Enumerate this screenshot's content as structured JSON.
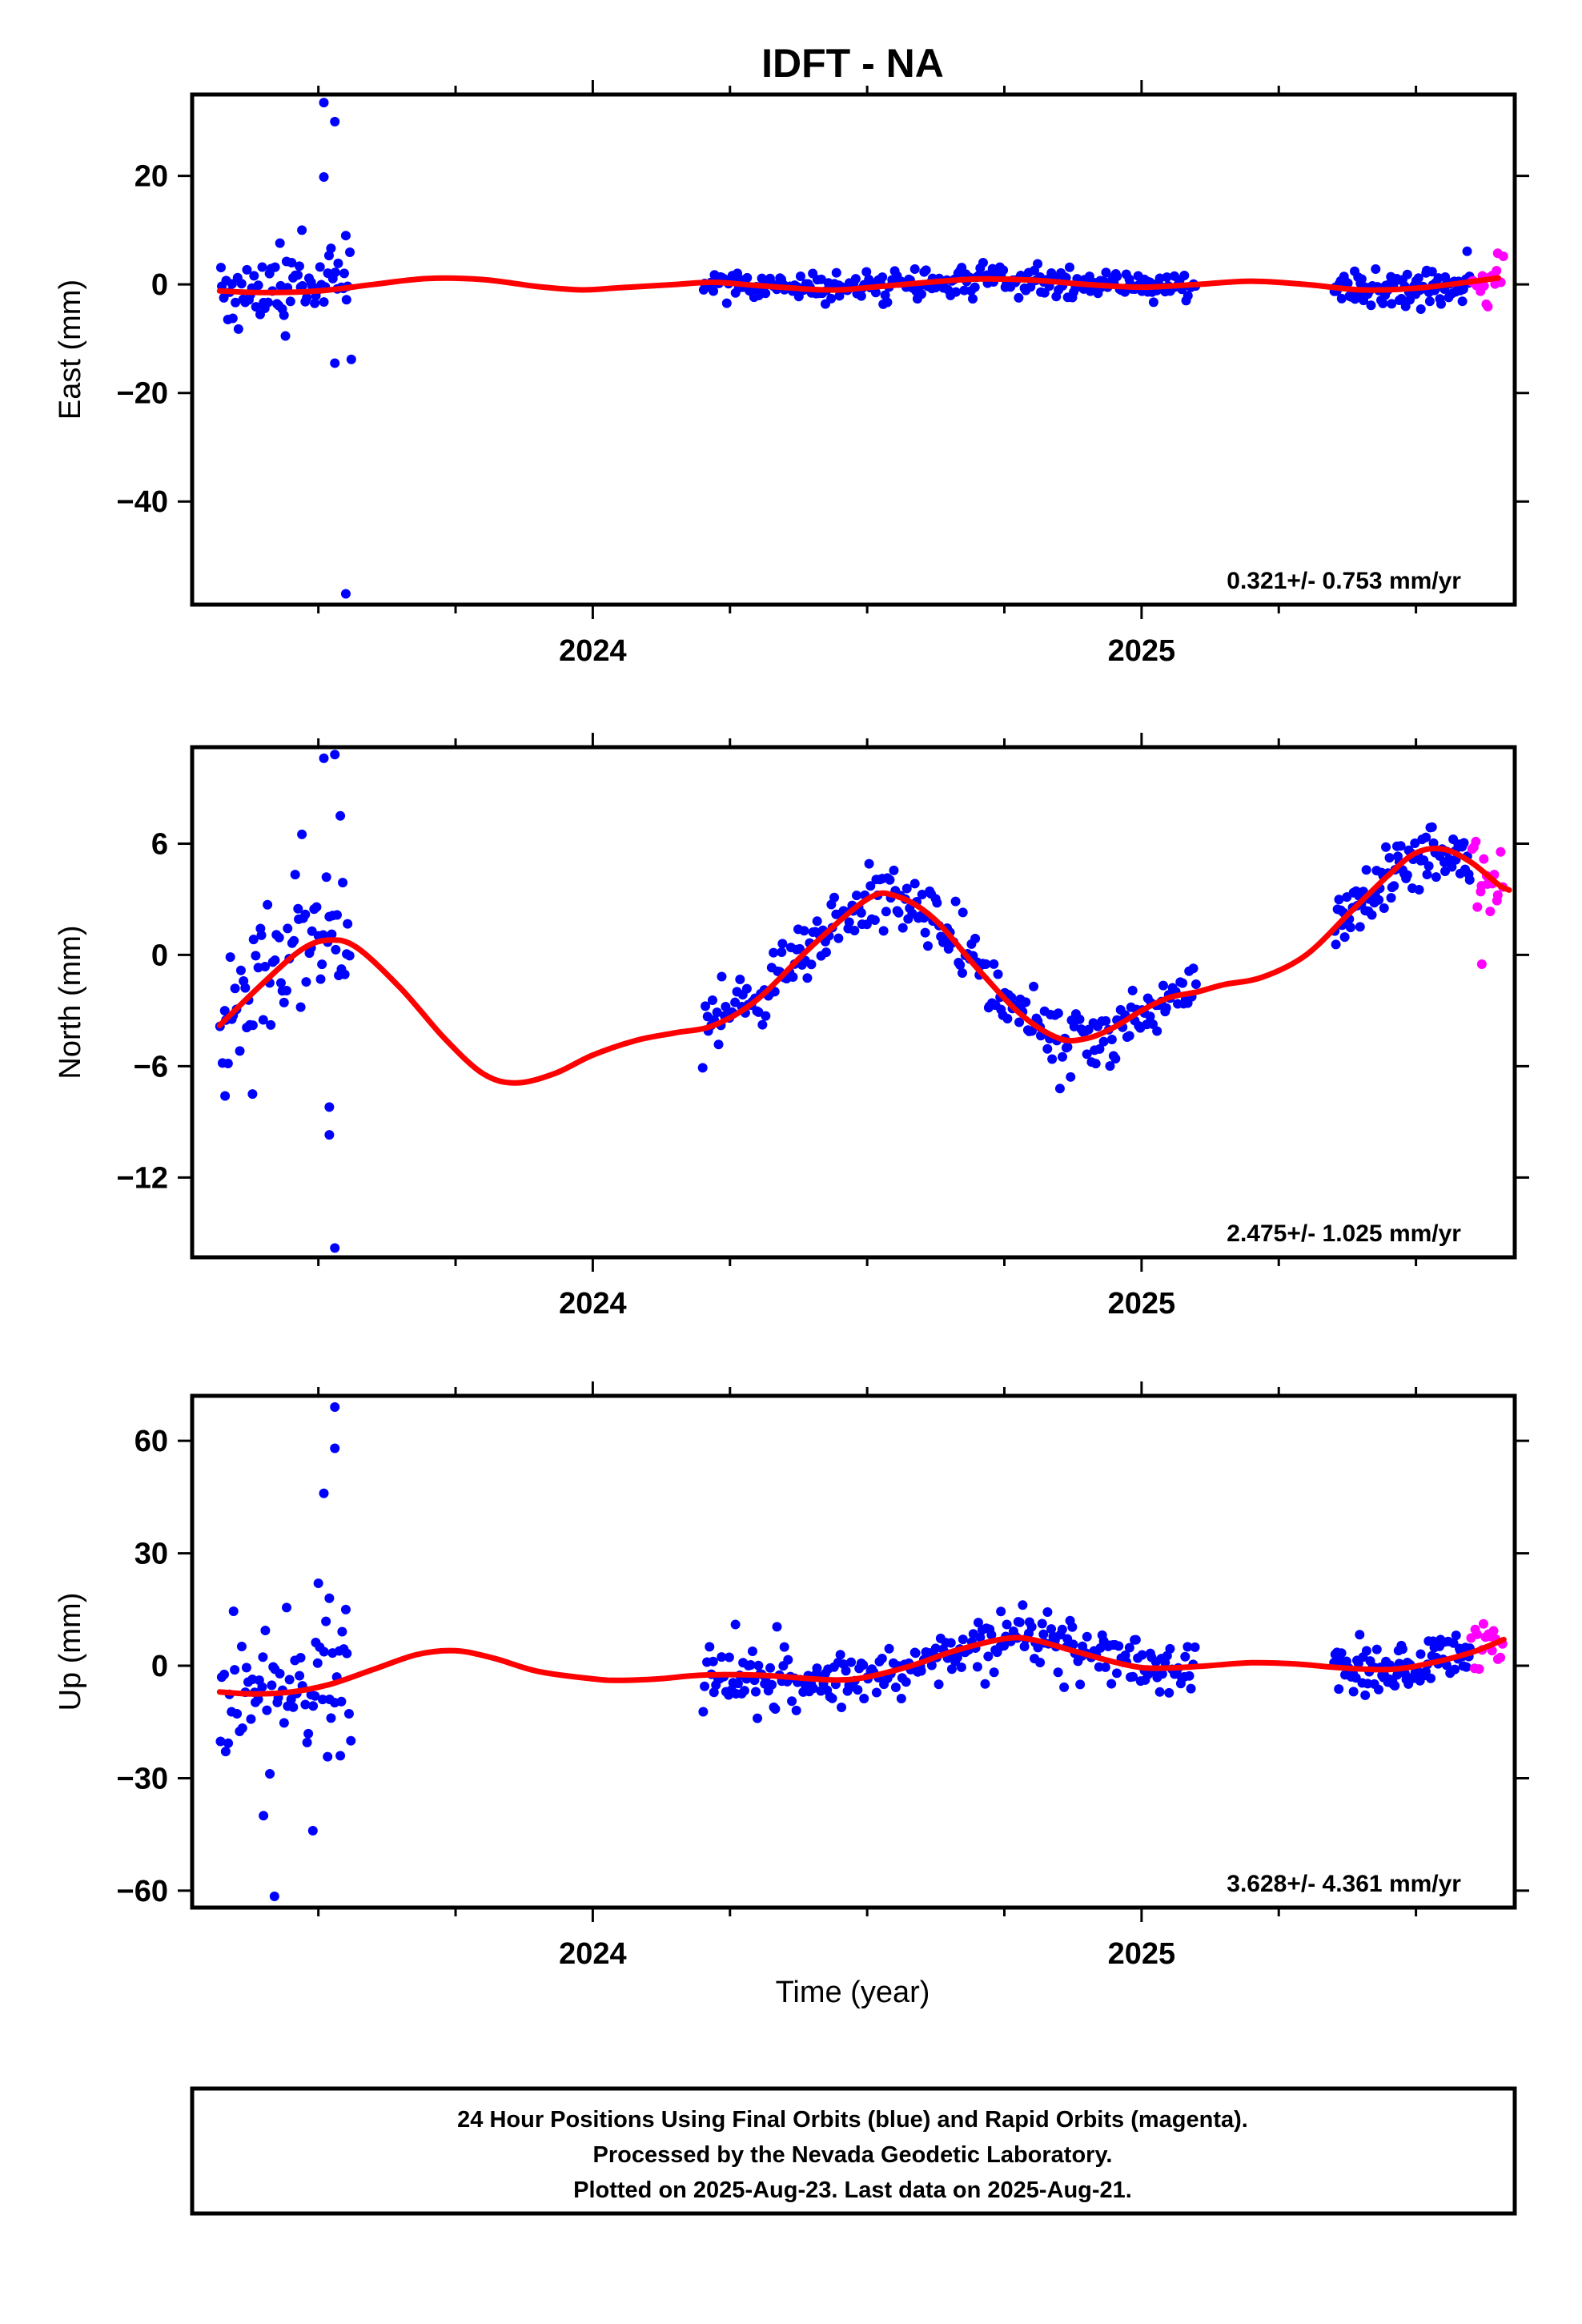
{
  "title": "IDFT - NA",
  "xlabel": "Time (year)",
  "colors": {
    "final": "#0000ff",
    "rapid": "#ff00ff",
    "model": "#ff0000",
    "frame": "#000000"
  },
  "x_range": [
    2023.27,
    2025.68
  ],
  "x_ticks": [
    {
      "value": 2024.0,
      "label": "2024"
    },
    {
      "value": 2025.0,
      "label": "2025"
    }
  ],
  "footer": {
    "line1": "24 Hour Positions Using Final Orbits (blue) and Rapid Orbits (magenta).",
    "line2": "Processed by the Nevada Geodetic Laboratory.",
    "line3": "Plotted on 2025-Aug-23. Last data on 2025-Aug-21."
  },
  "chart_data": [
    {
      "type": "scatter",
      "ylabel": "East (mm)",
      "rate": "0.321+/- 0.753 mm/yr",
      "ylim": [
        -59,
        35
      ],
      "yticks": [
        20,
        0,
        -20,
        -40
      ],
      "model": [
        [
          2023.32,
          -1.2
        ],
        [
          2023.4,
          -1.5
        ],
        [
          2023.5,
          -1.2
        ],
        [
          2023.6,
          0.0
        ],
        [
          2023.7,
          1.1
        ],
        [
          2023.8,
          0.9
        ],
        [
          2023.9,
          -0.4
        ],
        [
          2023.98,
          -1.0
        ],
        [
          2024.05,
          -0.6
        ],
        [
          2024.15,
          0.0
        ],
        [
          2024.22,
          0.4
        ],
        [
          2024.3,
          -0.2
        ],
        [
          2024.4,
          -0.9
        ],
        [
          2024.45,
          -1.0
        ],
        [
          2024.5,
          -0.6
        ],
        [
          2024.6,
          0.3
        ],
        [
          2024.7,
          1.0
        ],
        [
          2024.8,
          0.8
        ],
        [
          2024.9,
          0.0
        ],
        [
          2025.0,
          -0.5
        ],
        [
          2025.1,
          0.0
        ],
        [
          2025.2,
          0.6
        ],
        [
          2025.3,
          0.0
        ],
        [
          2025.4,
          -1.0
        ],
        [
          2025.5,
          -0.7
        ],
        [
          2025.6,
          0.5
        ],
        [
          2025.65,
          1.2
        ]
      ],
      "outliers": [
        [
          2023.51,
          33.5
        ],
        [
          2023.53,
          30.0
        ],
        [
          2023.51,
          19.8
        ],
        [
          2023.47,
          10.0
        ],
        [
          2023.43,
          7.6
        ],
        [
          2023.55,
          9.0
        ],
        [
          2023.55,
          -57.0
        ],
        [
          2023.53,
          -14.5
        ],
        [
          2023.56,
          -13.8
        ],
        [
          2023.44,
          -9.5
        ]
      ],
      "final_segments": [
        {
          "start": 2023.32,
          "end": 2023.56,
          "n": 70,
          "seed": 11,
          "spread": 3.5
        },
        {
          "start": 2024.2,
          "end": 2025.1,
          "n": 260,
          "seed": 12,
          "spread": 1.4
        },
        {
          "start": 2025.35,
          "end": 2025.6,
          "n": 90,
          "seed": 13,
          "spread": 1.6
        }
      ],
      "rapid_segment": {
        "start": 2025.6,
        "end": 2025.66,
        "n": 16,
        "seed": 14,
        "spread": 2.2
      }
    },
    {
      "type": "scatter",
      "ylabel": "North (mm)",
      "rate": "2.475+/- 1.025 mm/yr",
      "ylim": [
        -16.3,
        11.2
      ],
      "yticks": [
        6,
        0,
        -6,
        -12
      ],
      "model": [
        [
          2023.32,
          -3.8
        ],
        [
          2023.4,
          -1.5
        ],
        [
          2023.47,
          0.3
        ],
        [
          2023.52,
          0.8
        ],
        [
          2023.57,
          0.4
        ],
        [
          2023.65,
          -1.8
        ],
        [
          2023.73,
          -4.5
        ],
        [
          2023.8,
          -6.4
        ],
        [
          2023.86,
          -6.9
        ],
        [
          2023.93,
          -6.4
        ],
        [
          2024.0,
          -5.4
        ],
        [
          2024.08,
          -4.6
        ],
        [
          2024.15,
          -4.2
        ],
        [
          2024.22,
          -3.8
        ],
        [
          2024.3,
          -2.4
        ],
        [
          2024.4,
          0.5
        ],
        [
          2024.5,
          3.0
        ],
        [
          2024.55,
          3.2
        ],
        [
          2024.62,
          2.0
        ],
        [
          2024.7,
          -0.7
        ],
        [
          2024.78,
          -3.2
        ],
        [
          2024.85,
          -4.5
        ],
        [
          2024.9,
          -4.5
        ],
        [
          2024.95,
          -3.9
        ],
        [
          2025.0,
          -3.0
        ],
        [
          2025.05,
          -2.3
        ],
        [
          2025.1,
          -2.0
        ],
        [
          2025.15,
          -1.6
        ],
        [
          2025.22,
          -1.2
        ],
        [
          2025.3,
          0.0
        ],
        [
          2025.38,
          2.3
        ],
        [
          2025.45,
          4.3
        ],
        [
          2025.5,
          5.5
        ],
        [
          2025.55,
          5.7
        ],
        [
          2025.6,
          5.0
        ],
        [
          2025.65,
          3.8
        ],
        [
          2025.67,
          3.5
        ]
      ],
      "outliers": [
        [
          2023.53,
          10.8
        ],
        [
          2023.51,
          10.6
        ],
        [
          2023.54,
          7.5
        ],
        [
          2023.47,
          6.5
        ],
        [
          2023.52,
          -8.2
        ],
        [
          2023.52,
          -9.7
        ],
        [
          2023.53,
          -15.8
        ],
        [
          2023.33,
          -7.6
        ],
        [
          2023.38,
          -7.5
        ],
        [
          2025.62,
          -0.5
        ]
      ],
      "final_segments": [
        {
          "start": 2023.32,
          "end": 2023.56,
          "n": 70,
          "seed": 21,
          "spread": 1.6
        },
        {
          "start": 2024.2,
          "end": 2025.1,
          "n": 260,
          "seed": 22,
          "spread": 0.9
        },
        {
          "start": 2025.35,
          "end": 2025.6,
          "n": 90,
          "seed": 23,
          "spread": 0.9
        }
      ],
      "rapid_segment": {
        "start": 2025.6,
        "end": 2025.66,
        "n": 16,
        "seed": 24,
        "spread": 1.0
      }
    },
    {
      "type": "scatter",
      "ylabel": "Up (mm)",
      "rate": "3.628+/- 4.361 mm/yr",
      "ylim": [
        -64.5,
        72
      ],
      "yticks": [
        60,
        30,
        0,
        -30,
        -60
      ],
      "model": [
        [
          2023.32,
          -7.0
        ],
        [
          2023.38,
          -7.5
        ],
        [
          2023.45,
          -7.0
        ],
        [
          2023.52,
          -5.0
        ],
        [
          2023.6,
          -1.0
        ],
        [
          2023.68,
          3.0
        ],
        [
          2023.75,
          4.0
        ],
        [
          2023.82,
          2.0
        ],
        [
          2023.9,
          -1.5
        ],
        [
          2024.0,
          -3.5
        ],
        [
          2024.05,
          -3.9
        ],
        [
          2024.12,
          -3.5
        ],
        [
          2024.2,
          -2.5
        ],
        [
          2024.3,
          -2.5
        ],
        [
          2024.4,
          -3.5
        ],
        [
          2024.45,
          -3.8
        ],
        [
          2024.5,
          -3.0
        ],
        [
          2024.58,
          0.0
        ],
        [
          2024.66,
          4.0
        ],
        [
          2024.75,
          7.2
        ],
        [
          2024.8,
          7.0
        ],
        [
          2024.88,
          3.8
        ],
        [
          2024.95,
          1.0
        ],
        [
          2025.0,
          -0.5
        ],
        [
          2025.05,
          -0.6
        ],
        [
          2025.12,
          0.0
        ],
        [
          2025.2,
          0.8
        ],
        [
          2025.28,
          0.5
        ],
        [
          2025.36,
          -0.5
        ],
        [
          2025.45,
          -1.0
        ],
        [
          2025.52,
          0.5
        ],
        [
          2025.6,
          3.5
        ],
        [
          2025.66,
          7.0
        ]
      ],
      "outliers": [
        [
          2023.53,
          69.0
        ],
        [
          2023.53,
          58.0
        ],
        [
          2023.51,
          46.0
        ],
        [
          2023.5,
          22.0
        ],
        [
          2023.52,
          18.0
        ],
        [
          2023.55,
          15.0
        ],
        [
          2023.49,
          -44.0
        ],
        [
          2023.42,
          -61.5
        ],
        [
          2023.4,
          -40.0
        ],
        [
          2024.26,
          11.0
        ],
        [
          2024.3,
          -14.0
        ],
        [
          2023.54,
          -24.0
        ]
      ],
      "final_segments": [
        {
          "start": 2023.32,
          "end": 2023.56,
          "n": 70,
          "seed": 31,
          "spread": 9.0
        },
        {
          "start": 2024.2,
          "end": 2025.1,
          "n": 260,
          "seed": 32,
          "spread": 4.0
        },
        {
          "start": 2025.35,
          "end": 2025.6,
          "n": 90,
          "seed": 33,
          "spread": 3.5
        }
      ],
      "rapid_segment": {
        "start": 2025.6,
        "end": 2025.66,
        "n": 16,
        "seed": 34,
        "spread": 4.0
      }
    }
  ]
}
